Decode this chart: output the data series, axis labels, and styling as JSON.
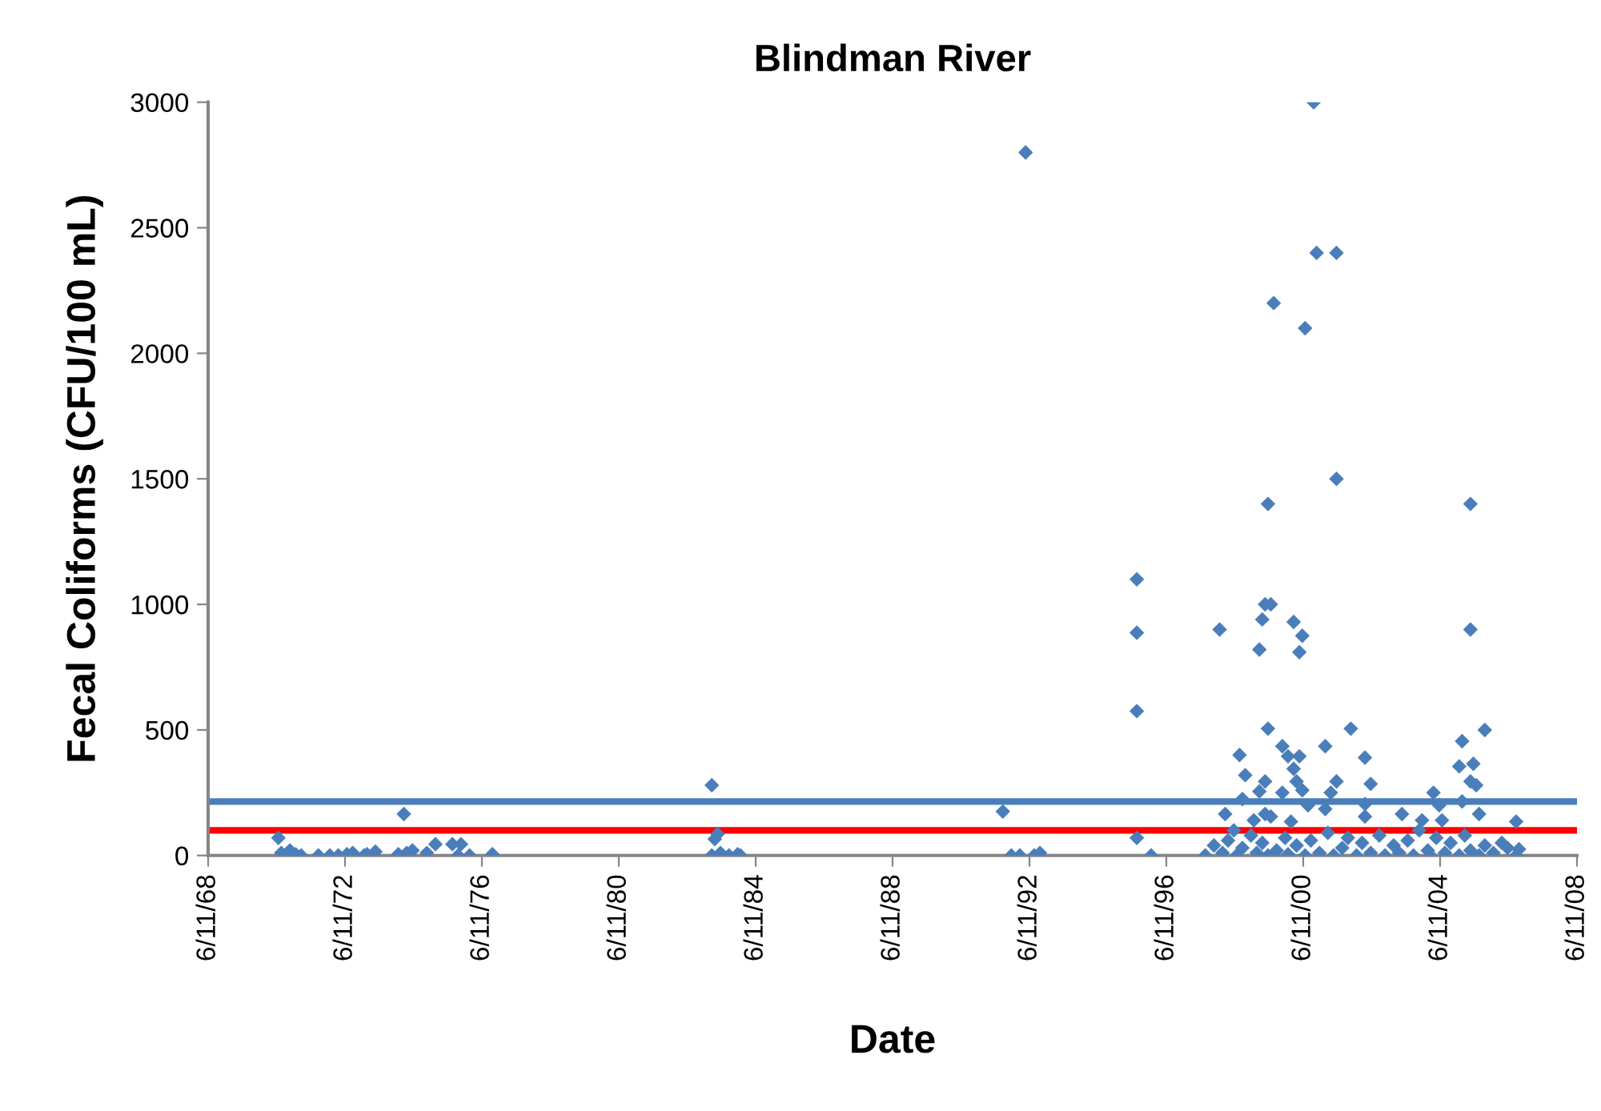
{
  "chart_data": {
    "type": "scatter",
    "title": "Blindman River",
    "xlabel": "Date",
    "ylabel": "Fecal Coliforms (CFU/100 mL)",
    "marker": "diamond",
    "grid": false,
    "legend": false,
    "xlim": [
      "1968-06-11",
      "2008-06-11"
    ],
    "xticks": [
      {
        "value": "1968-06-11",
        "label": "6/11/68"
      },
      {
        "value": "1972-06-11",
        "label": "6/11/72"
      },
      {
        "value": "1976-06-11",
        "label": "6/11/76"
      },
      {
        "value": "1980-06-11",
        "label": "6/11/80"
      },
      {
        "value": "1984-06-11",
        "label": "6/11/84"
      },
      {
        "value": "1988-06-11",
        "label": "6/11/88"
      },
      {
        "value": "1992-06-11",
        "label": "6/11/92"
      },
      {
        "value": "1996-06-11",
        "label": "6/11/96"
      },
      {
        "value": "2000-06-11",
        "label": "6/11/00"
      },
      {
        "value": "2004-06-11",
        "label": "6/11/04"
      },
      {
        "value": "2008-06-11",
        "label": "6/11/08"
      }
    ],
    "ylim": [
      0,
      3000
    ],
    "yticks": [
      0,
      500,
      1000,
      1500,
      2000,
      2500,
      3000
    ],
    "ref_lines": [
      {
        "axis": "y",
        "value": 215,
        "color": "#4a7ebb"
      },
      {
        "axis": "y",
        "value": 100,
        "color": "#ff0000"
      }
    ],
    "series": [
      {
        "color": "#4a7ebb",
        "x": [
          "1970-07",
          "1970-08",
          "1970-10",
          "1970-11",
          "1971-01",
          "1971-03",
          "1971-09",
          "1972-01",
          "1972-04",
          "1972-07",
          "1972-09",
          "1973-01",
          "1973-02",
          "1973-05",
          "1974-01",
          "1974-03",
          "1974-04",
          "1974-06",
          "1974-11",
          "1975-02",
          "1975-08",
          "1975-10",
          "1975-11",
          "1976-02",
          "1976-10",
          "1983-03",
          "1983-04",
          "1983-05",
          "1983-03",
          "1983-06",
          "1983-09",
          "1983-12",
          "1984-01",
          "1991-09",
          "1991-12",
          "1992-03",
          "1992-05",
          "1992-08",
          "1992-10",
          "1995-08",
          "1995-08",
          "1995-08",
          "1995-08",
          "1996-01",
          "2000-10",
          "2000-11",
          "2001-06",
          "1999-08",
          "2000-07",
          "2001-06",
          "1999-06",
          "2005-05",
          "1999-05",
          "1999-07",
          "1998-01",
          "1999-04",
          "2000-03",
          "2000-06",
          "1999-03",
          "2000-05",
          "2005-05",
          "1999-06",
          "2001-11",
          "2005-10",
          "2005-02",
          "1999-11",
          "2001-02",
          "1998-08",
          "2000-01",
          "2000-05",
          "2002-04",
          "2005-06",
          "2005-01",
          "2000-03",
          "1998-10",
          "1999-05",
          "2001-06",
          "2000-04",
          "2002-06",
          "2005-05",
          "2005-07",
          "1999-03",
          "2000-06",
          "1999-11",
          "2001-04",
          "2004-04",
          "1998-09",
          "2005-02",
          "1998-03",
          "1999-01",
          "2000-08",
          "2001-02",
          "2002-04",
          "2002-04",
          "2003-05",
          "2003-12",
          "2004-07",
          "2005-08",
          "2006-09",
          "1999-05",
          "1999-07",
          "2000-02",
          "2004-06",
          "1998-06",
          "1997-08",
          "1997-11",
          "1998-02",
          "1998-04",
          "1998-07",
          "1998-09",
          "1998-12",
          "1999-02",
          "1999-04",
          "1999-06",
          "1999-09",
          "1999-12",
          "2000-01",
          "2000-04",
          "2000-07",
          "2000-09",
          "2000-12",
          "2001-03",
          "2001-05",
          "2001-08",
          "2001-10",
          "2002-01",
          "2002-03",
          "2002-06",
          "2002-09",
          "2002-11",
          "2003-02",
          "2003-04",
          "2003-07",
          "2003-09",
          "2003-11",
          "2004-02",
          "2004-03",
          "2004-05",
          "2004-08",
          "2004-10",
          "2005-01",
          "2005-03",
          "2005-05",
          "2005-08",
          "2005-10",
          "2006-01",
          "2006-04",
          "2006-06",
          "2006-09",
          "2006-10"
        ],
        "values": [
          70,
          10,
          0,
          20,
          5,
          0,
          0,
          0,
          0,
          5,
          10,
          0,
          5,
          15,
          5,
          165,
          10,
          20,
          10,
          45,
          45,
          0,
          45,
          0,
          5,
          280,
          65,
          85,
          0,
          10,
          0,
          5,
          0,
          175,
          0,
          0,
          2800,
          0,
          10,
          1100,
          887,
          575,
          70,
          0,
          3000,
          2400,
          2400,
          2200,
          2100,
          1500,
          1400,
          1400,
          1000,
          1000,
          900,
          940,
          930,
          875,
          820,
          810,
          900,
          505,
          505,
          500,
          455,
          435,
          435,
          400,
          395,
          395,
          390,
          365,
          355,
          345,
          320,
          295,
          295,
          295,
          285,
          295,
          280,
          255,
          260,
          250,
          250,
          250,
          225,
          215,
          165,
          140,
          200,
          185,
          205,
          155,
          165,
          140,
          140,
          165,
          135,
          165,
          155,
          135,
          200,
          100,
          0,
          40,
          10,
          60,
          0,
          30,
          80,
          10,
          50,
          0,
          20,
          70,
          5,
          40,
          0,
          60,
          10,
          90,
          0,
          30,
          70,
          0,
          50,
          10,
          80,
          0,
          40,
          10,
          60,
          0,
          100,
          20,
          0,
          70,
          10,
          50,
          0,
          80,
          20,
          0,
          40,
          10,
          50,
          30,
          0,
          25
        ]
      }
    ]
  }
}
